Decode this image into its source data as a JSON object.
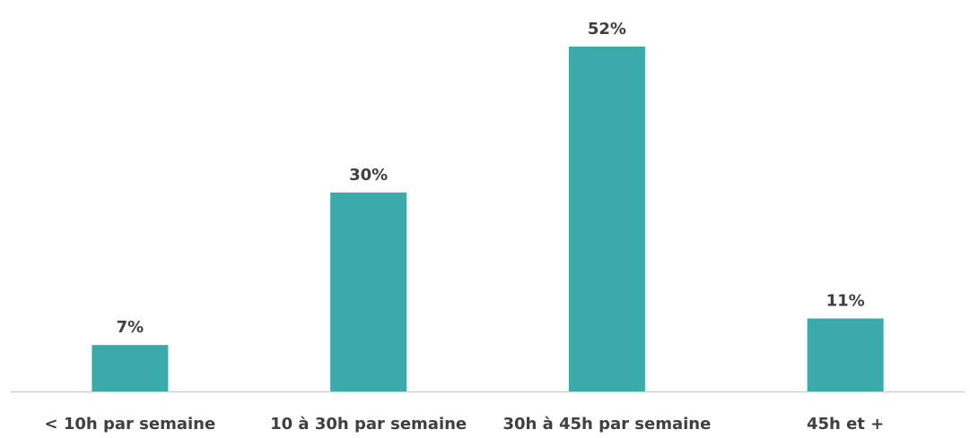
{
  "chart_data": {
    "type": "bar",
    "categories": [
      "< 10h par semaine",
      "10 à 30h par semaine",
      "30h à 45h par semaine",
      "45h et +"
    ],
    "values": [
      7,
      30,
      52,
      11
    ],
    "value_labels": [
      "7%",
      "30%",
      "52%",
      "11%"
    ],
    "title": "",
    "xlabel": "",
    "ylabel": "",
    "ylim": [
      0,
      52
    ],
    "grid": false,
    "legend": "none"
  },
  "colors": {
    "bar": "#3caaaa",
    "axis": "#d0d0d0",
    "text": "#3f3f3f"
  }
}
